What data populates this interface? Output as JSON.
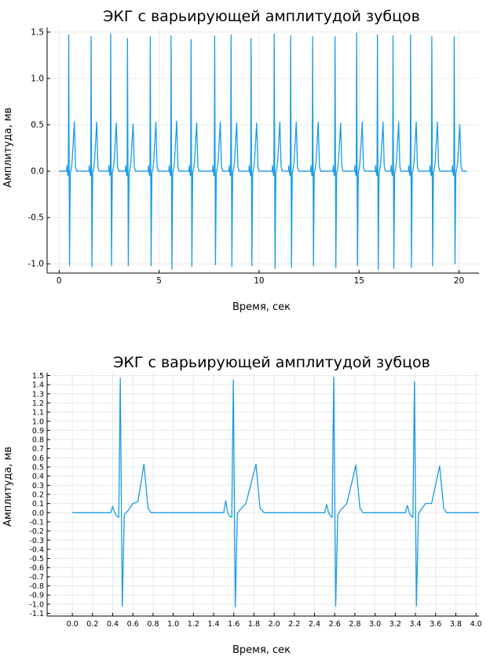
{
  "colors": {
    "line": "#1a9be6"
  },
  "chart_data": [
    {
      "type": "line",
      "title": "ЭКГ с варьирующей амплитудой зубцов",
      "xlabel": "Время, сек",
      "ylabel": "Амплитуда, мв",
      "xlim": [
        -0.6,
        21.0
      ],
      "ylim": [
        -1.1,
        1.55
      ],
      "xticks": [
        0,
        5,
        10,
        15,
        20
      ],
      "xtick_labels": [
        "0",
        "5",
        "10",
        "15",
        "20"
      ],
      "yticks": [
        -1.0,
        -0.5,
        0.0,
        0.5,
        1.0,
        1.5
      ],
      "ytick_labels": [
        "-1.0",
        "-0.5",
        "0.0",
        "0.5",
        "1.0",
        "1.5"
      ],
      "grid": true,
      "series": [
        {
          "beats": [
            {
              "t": 0.48,
              "r": 1.47,
              "s": -1.02,
              "tw": 0.53
            },
            {
              "t": 1.6,
              "r": 1.45,
              "s": -1.03,
              "tw": 0.53
            },
            {
              "t": 2.58,
              "r": 1.48,
              "s": -1.02,
              "tw": 0.52
            },
            {
              "t": 3.42,
              "r": 1.43,
              "s": -1.02,
              "tw": 0.51
            },
            {
              "t": 4.56,
              "r": 1.45,
              "s": -1.02,
              "tw": 0.53
            },
            {
              "t": 5.6,
              "r": 1.46,
              "s": -1.06,
              "tw": 0.54
            },
            {
              "t": 6.6,
              "r": 1.42,
              "s": -1.03,
              "tw": 0.52
            },
            {
              "t": 7.78,
              "r": 1.46,
              "s": -1.01,
              "tw": 0.53
            },
            {
              "t": 8.6,
              "r": 1.47,
              "s": -1.03,
              "tw": 0.52
            },
            {
              "t": 9.6,
              "r": 1.43,
              "s": -1.02,
              "tw": 0.52
            },
            {
              "t": 10.76,
              "r": 1.48,
              "s": -1.05,
              "tw": 0.53
            },
            {
              "t": 11.58,
              "r": 1.46,
              "s": -1.04,
              "tw": 0.53
            },
            {
              "t": 12.68,
              "r": 1.45,
              "s": -1.02,
              "tw": 0.53
            },
            {
              "t": 13.8,
              "r": 1.45,
              "s": -1.04,
              "tw": 0.52
            },
            {
              "t": 14.88,
              "r": 1.49,
              "s": -1.02,
              "tw": 0.53
            },
            {
              "t": 15.92,
              "r": 1.47,
              "s": -1.06,
              "tw": 0.53
            },
            {
              "t": 16.7,
              "r": 1.46,
              "s": -1.05,
              "tw": 0.53
            },
            {
              "t": 17.58,
              "r": 1.47,
              "s": -1.04,
              "tw": 0.53
            },
            {
              "t": 18.64,
              "r": 1.45,
              "s": -1.02,
              "tw": 0.53
            },
            {
              "t": 19.76,
              "r": 1.45,
              "s": -1.0,
              "tw": 0.5
            }
          ],
          "x_start": 0.0,
          "x_end": 20.4
        }
      ]
    },
    {
      "type": "line",
      "title": "ЭКГ с варьирующей амплитудой зубцов",
      "xlabel": "Время, сек",
      "ylabel": "Амплитуда, мв",
      "xlim": [
        -0.25,
        4.03
      ],
      "ylim": [
        -1.13,
        1.53
      ],
      "xticks": [
        0.0,
        0.2,
        0.4,
        0.6,
        0.8,
        1.0,
        1.2,
        1.4,
        1.6,
        1.8,
        2.0,
        2.2,
        2.4,
        2.6,
        2.8,
        3.0,
        3.2,
        3.4,
        3.6,
        3.8,
        4.0
      ],
      "xtick_labels": [
        "0.0",
        "0.2",
        "0.4",
        "0.6",
        "0.8",
        "1.0",
        "1.2",
        "1.4",
        "1.6",
        "1.8",
        "2.0",
        "2.2",
        "2.4",
        "2.6",
        "2.8",
        "3.0",
        "3.2",
        "3.4",
        "3.6",
        "3.8",
        "4.0"
      ],
      "yticks": [
        -1.1,
        -1.0,
        -0.9,
        -0.8,
        -0.7,
        -0.6,
        -0.5,
        -0.4,
        -0.3,
        -0.2,
        -0.1,
        0.0,
        0.1,
        0.2,
        0.3,
        0.4,
        0.5,
        0.6,
        0.7,
        0.8,
        0.9,
        1.0,
        1.1,
        1.2,
        1.3,
        1.4,
        1.5
      ],
      "ytick_labels": [
        "-1.1",
        "-1.0",
        "-0.9",
        "-0.8",
        "-0.7",
        "-0.6",
        "-0.5",
        "-0.4",
        "-0.3",
        "-0.2",
        "-0.1",
        "0.0",
        "0.1",
        "0.2",
        "0.3",
        "0.4",
        "0.5",
        "0.6",
        "0.7",
        "0.8",
        "0.9",
        "1.0",
        "1.1",
        "1.2",
        "1.3",
        "1.4",
        "1.5"
      ],
      "grid": true,
      "series": [
        {
          "points": [
            [
              0.0,
              0.0
            ],
            [
              0.38,
              0.0
            ],
            [
              0.4,
              0.07
            ],
            [
              0.42,
              0.0
            ],
            [
              0.44,
              -0.04
            ],
            [
              0.46,
              -0.05
            ],
            [
              0.475,
              1.47
            ],
            [
              0.495,
              -1.02
            ],
            [
              0.515,
              -0.02
            ],
            [
              0.55,
              0.02
            ],
            [
              0.6,
              0.1
            ],
            [
              0.65,
              0.12
            ],
            [
              0.71,
              0.53
            ],
            [
              0.75,
              0.05
            ],
            [
              0.78,
              0.0
            ],
            [
              1.5,
              0.0
            ],
            [
              1.52,
              0.13
            ],
            [
              1.54,
              0.0
            ],
            [
              1.56,
              -0.04
            ],
            [
              1.58,
              -0.05
            ],
            [
              1.595,
              1.45
            ],
            [
              1.615,
              -1.03
            ],
            [
              1.635,
              -0.01
            ],
            [
              1.66,
              0.03
            ],
            [
              1.72,
              0.1
            ],
            [
              1.82,
              0.53
            ],
            [
              1.86,
              0.05
            ],
            [
              1.9,
              0.0
            ],
            [
              2.5,
              0.0
            ],
            [
              2.52,
              0.09
            ],
            [
              2.54,
              0.0
            ],
            [
              2.56,
              -0.04
            ],
            [
              2.575,
              -0.05
            ],
            [
              2.59,
              1.48
            ],
            [
              2.61,
              -1.02
            ],
            [
              2.63,
              -0.02
            ],
            [
              2.66,
              0.03
            ],
            [
              2.72,
              0.1
            ],
            [
              2.81,
              0.52
            ],
            [
              2.85,
              0.05
            ],
            [
              2.88,
              0.0
            ],
            [
              3.3,
              0.0
            ],
            [
              3.32,
              0.08
            ],
            [
              3.34,
              0.0
            ],
            [
              3.36,
              -0.04
            ],
            [
              3.375,
              -0.05
            ],
            [
              3.39,
              1.43
            ],
            [
              3.41,
              -1.02
            ],
            [
              3.43,
              -0.01
            ],
            [
              3.46,
              0.04
            ],
            [
              3.5,
              0.1
            ],
            [
              3.56,
              0.1
            ],
            [
              3.64,
              0.51
            ],
            [
              3.68,
              0.05
            ],
            [
              3.71,
              0.0
            ],
            [
              4.03,
              0.0
            ]
          ]
        }
      ]
    }
  ]
}
